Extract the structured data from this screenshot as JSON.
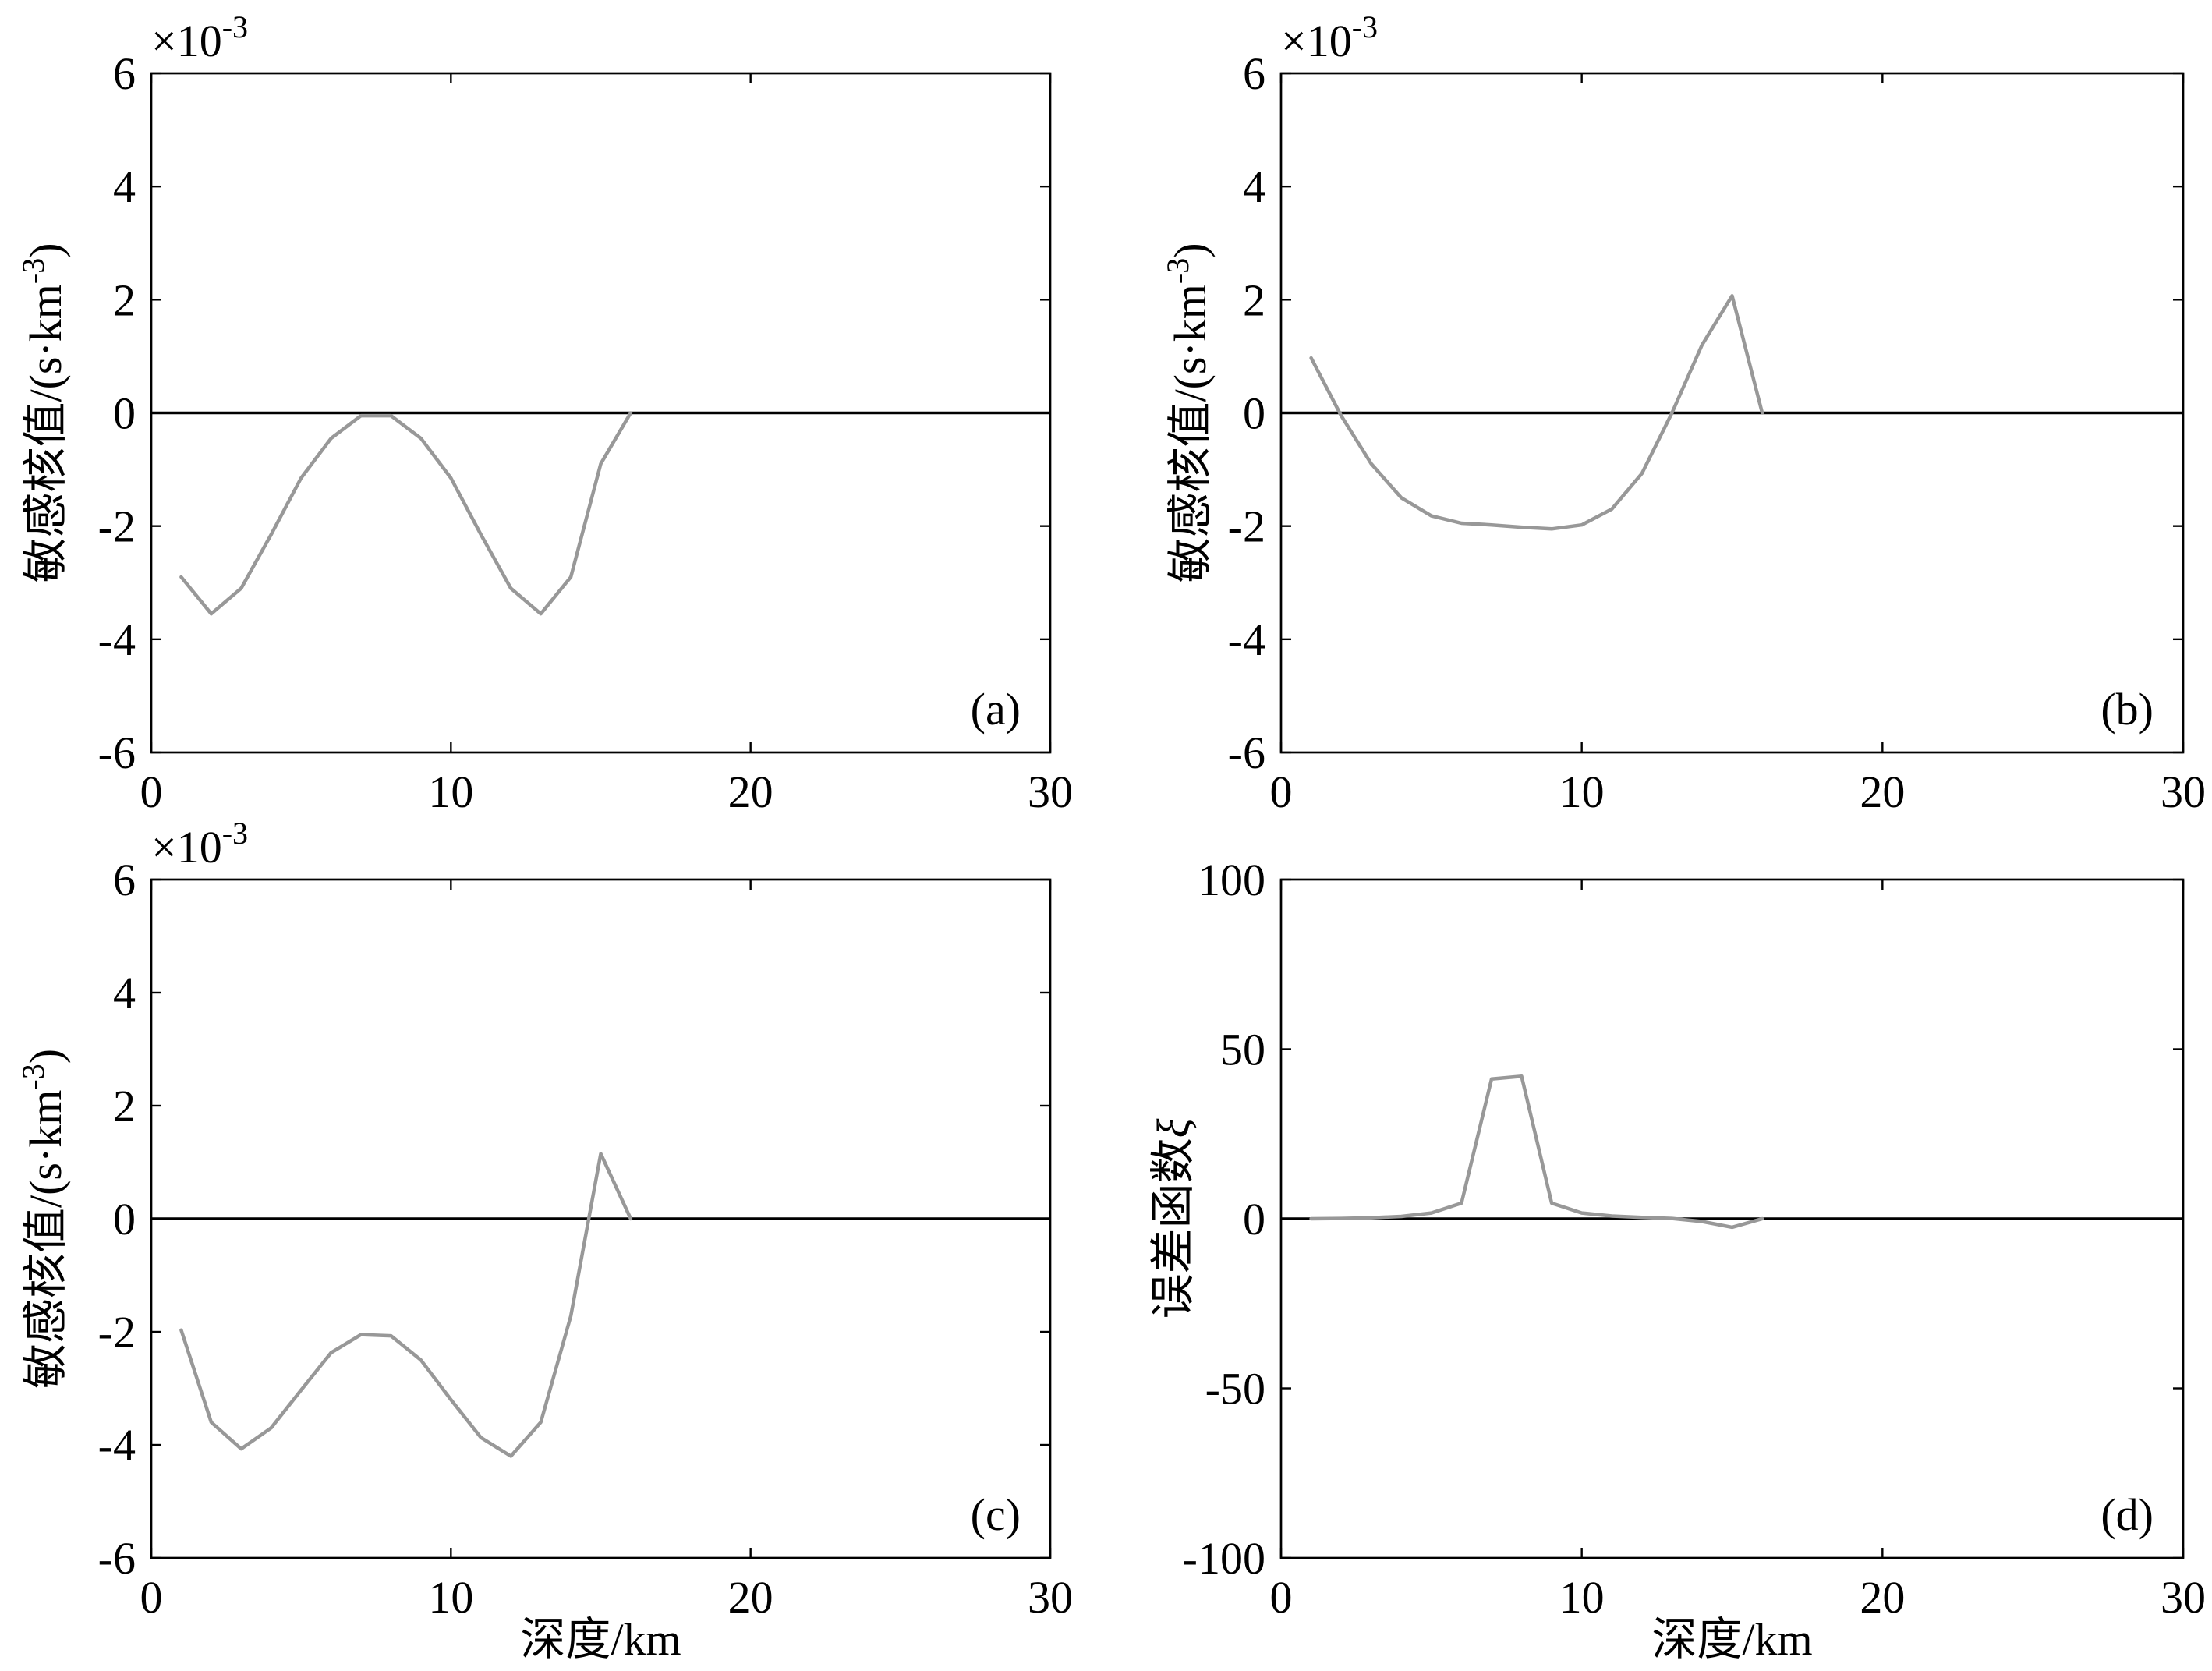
{
  "figure": {
    "colors": {
      "background": "#ffffff",
      "series": "#989898",
      "axes": "#000000",
      "zero_line": "#000000"
    }
  },
  "chart_data": [
    {
      "type": "line",
      "panel_label": "(a)",
      "multiplier": {
        "base": "×10",
        "exponent": "-3"
      },
      "ylabel": {
        "text": "敏感核值/(s·km",
        "superscript": "-3",
        "tail": ")"
      },
      "xlabel": "",
      "xlim": [
        0,
        30
      ],
      "ylim": [
        -6,
        6
      ],
      "xticks": [
        0,
        10,
        20,
        30
      ],
      "yticks": [
        -6,
        -4,
        -2,
        0,
        2,
        4,
        6
      ],
      "reference_line_y": 0,
      "grid": false,
      "x": [
        1,
        2,
        3,
        4,
        5,
        6,
        7,
        8,
        9,
        10,
        11,
        12,
        13,
        14,
        15,
        16
      ],
      "y": [
        -2.9,
        -3.55,
        -3.1,
        -2.15,
        -1.15,
        -0.45,
        -0.05,
        -0.05,
        -0.45,
        -1.15,
        -2.15,
        -3.1,
        -3.55,
        -2.9,
        -0.9,
        0
      ]
    },
    {
      "type": "line",
      "panel_label": "(b)",
      "multiplier": {
        "base": "×10",
        "exponent": "-3"
      },
      "ylabel": {
        "text": "敏感核值/(s·km",
        "superscript": "-3",
        "tail": ")"
      },
      "xlabel": "",
      "xlim": [
        0,
        30
      ],
      "ylim": [
        -6,
        6
      ],
      "xticks": [
        0,
        10,
        20,
        30
      ],
      "yticks": [
        -6,
        -4,
        -2,
        0,
        2,
        4,
        6
      ],
      "reference_line_y": 0,
      "grid": false,
      "x": [
        1,
        2,
        3,
        4,
        5,
        6,
        7,
        8,
        9,
        10,
        11,
        12,
        13,
        14,
        15,
        16
      ],
      "y": [
        0.97,
        -0.05,
        -0.9,
        -1.5,
        -1.82,
        -1.95,
        -1.98,
        -2.02,
        -2.05,
        -1.98,
        -1.7,
        -1.07,
        0,
        1.2,
        2.07,
        0
      ]
    },
    {
      "type": "line",
      "panel_label": "(c)",
      "multiplier": {
        "base": "×10",
        "exponent": "-3"
      },
      "ylabel": {
        "text": "敏感核值/(s·km",
        "superscript": "-3",
        "tail": ")"
      },
      "xlabel": "深度/km",
      "xlim": [
        0,
        30
      ],
      "ylim": [
        -6,
        6
      ],
      "xticks": [
        0,
        10,
        20,
        30
      ],
      "yticks": [
        -6,
        -4,
        -2,
        0,
        2,
        4,
        6
      ],
      "reference_line_y": 0,
      "grid": false,
      "x": [
        1,
        2,
        3,
        4,
        5,
        6,
        7,
        8,
        9,
        10,
        11,
        12,
        13,
        14,
        15,
        16
      ],
      "y": [
        -1.97,
        -3.6,
        -4.07,
        -3.7,
        -3.03,
        -2.37,
        -2.05,
        -2.07,
        -2.5,
        -3.2,
        -3.87,
        -4.2,
        -3.6,
        -1.72,
        1.15,
        0
      ]
    },
    {
      "type": "line",
      "panel_label": "(d)",
      "ylabel": {
        "text": "误差函数",
        "italic": "ξ"
      },
      "xlabel": "深度/km",
      "xlim": [
        0,
        30
      ],
      "ylim": [
        -100,
        100
      ],
      "xticks": [
        0,
        10,
        20,
        30
      ],
      "yticks": [
        -100,
        -50,
        0,
        50,
        100
      ],
      "reference_line_y": 0,
      "grid": false,
      "x": [
        1,
        2,
        3,
        4,
        5,
        6,
        7,
        8,
        9,
        10,
        11,
        12,
        13,
        14,
        15,
        16
      ],
      "y": [
        0,
        0.1,
        0.3,
        0.7,
        1.7,
        4.6,
        41.2,
        42.0,
        4.6,
        1.7,
        0.8,
        0.4,
        0.1,
        -0.8,
        -2.5,
        0
      ]
    }
  ]
}
